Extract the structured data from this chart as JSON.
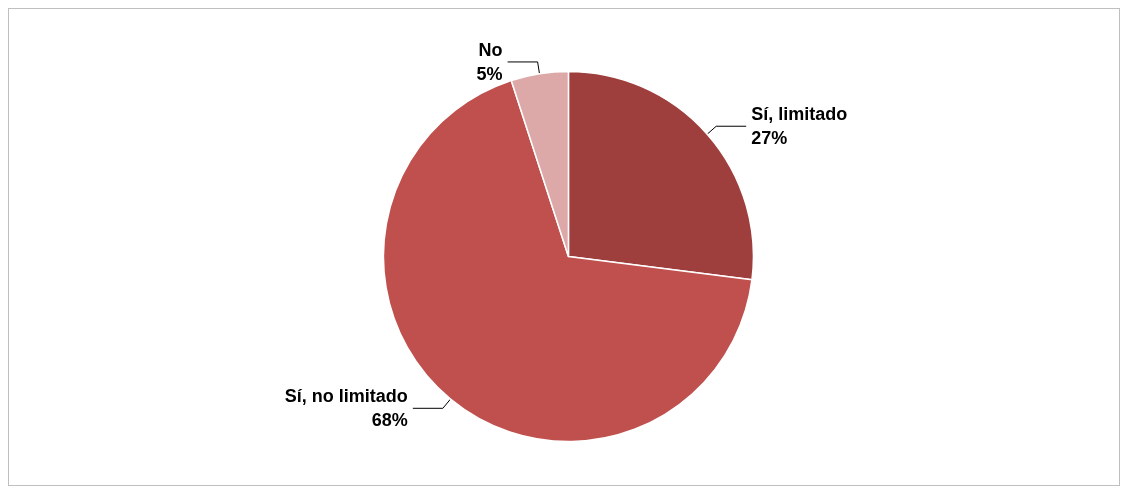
{
  "chart_data": {
    "type": "pie",
    "categories": [
      "Sí, limitado",
      "Sí, no limitado",
      "No"
    ],
    "values": [
      27,
      68,
      5
    ],
    "colors": [
      "#9e3f3d",
      "#c0504d",
      "#dca9a8"
    ],
    "value_labels": [
      "27%",
      "68%",
      "5%"
    ],
    "legend": false
  }
}
